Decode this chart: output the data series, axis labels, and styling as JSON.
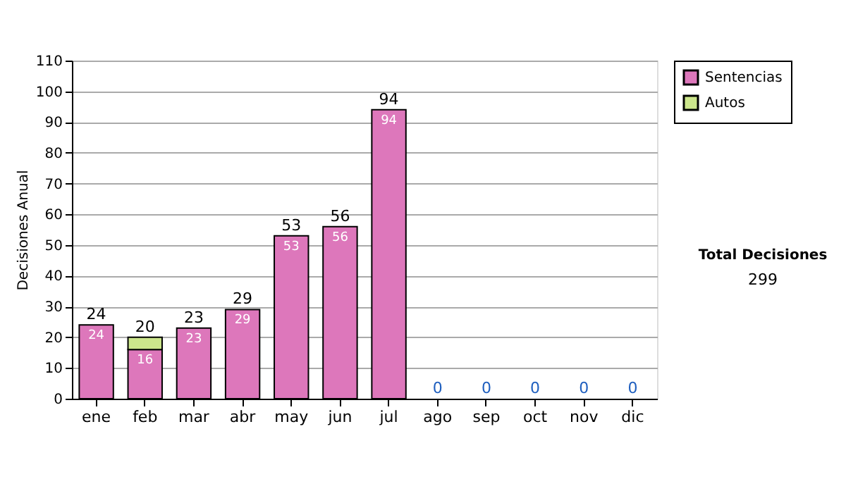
{
  "chart_data": {
    "type": "bar",
    "stacked": true,
    "ylabel": "Decisiones Anual",
    "categories": [
      "ene",
      "feb",
      "mar",
      "abr",
      "may",
      "jun",
      "jul",
      "ago",
      "sep",
      "oct",
      "nov",
      "dic"
    ],
    "series": [
      {
        "name": "Sentencias",
        "color": "#dd77bb",
        "values": [
          24,
          16,
          23,
          29,
          53,
          56,
          94,
          0,
          0,
          0,
          0,
          0
        ],
        "value_labels": [
          "24",
          "16",
          "23",
          "29",
          "53",
          "56",
          "94",
          null,
          null,
          null,
          null,
          null
        ]
      },
      {
        "name": "Autos",
        "color": "#cce68c",
        "values": [
          0,
          4,
          0,
          0,
          0,
          0,
          0,
          0,
          0,
          0,
          0,
          0
        ]
      }
    ],
    "totals": [
      "24",
      "20",
      "23",
      "29",
      "53",
      "56",
      "94",
      "0",
      "0",
      "0",
      "0",
      "0"
    ],
    "ylim": [
      0,
      110
    ],
    "yticks": [
      0,
      10,
      20,
      30,
      40,
      50,
      60,
      70,
      80,
      90,
      100,
      110
    ],
    "grid": "y",
    "legend": "right",
    "annotations": [
      "Total Decisiones",
      "299"
    ]
  }
}
